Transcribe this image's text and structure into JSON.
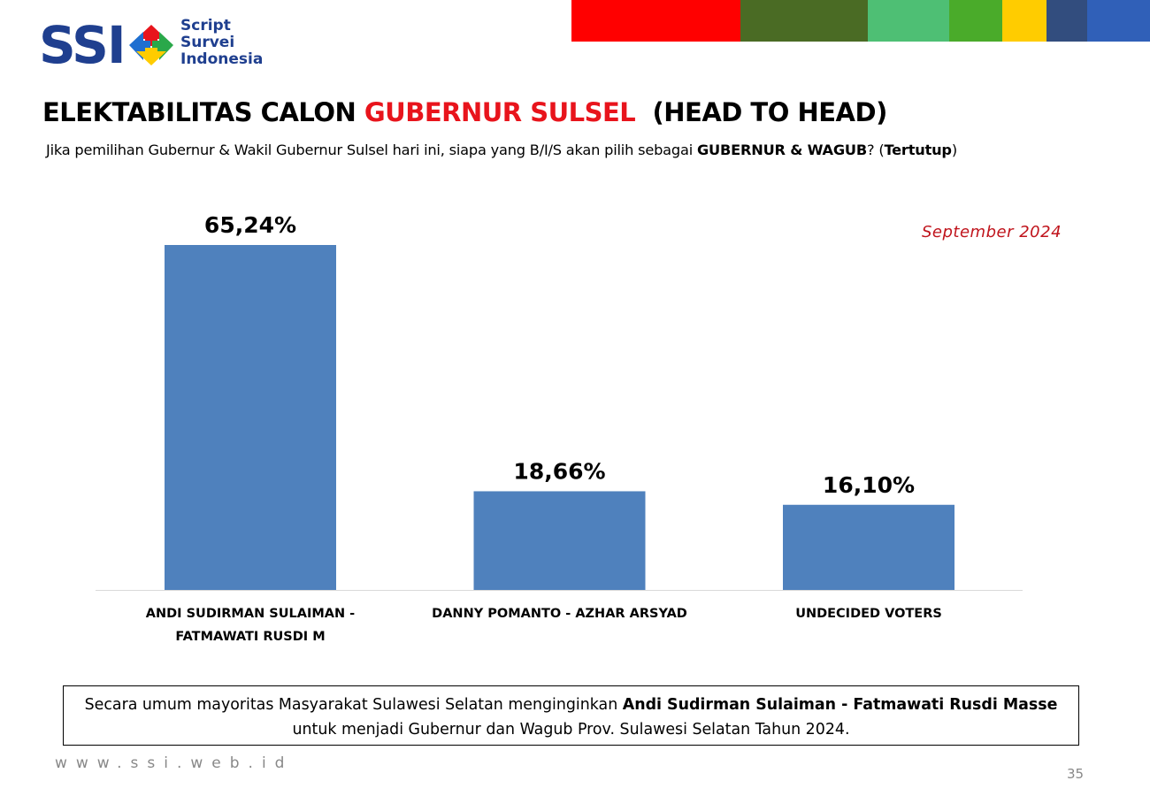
{
  "logo": {
    "brand": "SSI",
    "line1": "Script",
    "line2": "Survei",
    "line3": "Indonesia"
  },
  "strip_colors": [
    "#ff0000",
    "#4a6b24",
    "#4ebf74",
    "#4aab2a",
    "#ffcc00",
    "#324d7e",
    "#3060b8"
  ],
  "title": {
    "part1": "ELEKTABILITAS CALON ",
    "part2": "GUBERNUR SULSEL",
    "part3": "  (HEAD TO HEAD)",
    "accent_color": "#e8141c"
  },
  "subtitle": {
    "text1": "Jika pemilihan Gubernur & Wakil Gubernur Sulsel hari ini, siapa yang B/I/S akan pilih sebagai ",
    "bold1": "GUBERNUR & WAGUB",
    "text2": "? (",
    "bold2": "Tertutup",
    "text3": ")"
  },
  "date_label": "September 2024",
  "chart_data": {
    "type": "bar",
    "categories": [
      [
        "ANDI SUDIRMAN SULAIMAN -",
        "FATMAWATI RUSDI M"
      ],
      [
        "DANNY POMANTO - AZHAR ARSYAD"
      ],
      [
        "UNDECIDED VOTERS"
      ]
    ],
    "values": [
      65.24,
      18.66,
      16.1
    ],
    "value_labels": [
      "65,24%",
      "18,66%",
      "16,10%"
    ],
    "bar_color": "#4f81bd",
    "ylim": [
      0,
      70
    ],
    "grid": false,
    "title": "",
    "xlabel": "",
    "ylabel": ""
  },
  "summary": {
    "text1": "Secara umum mayoritas Masyarakat Sulawesi Selatan menginginkan ",
    "bold1": "Andi Sudirman Sulaiman - Fatmawati Rusdi Masse",
    "text2": " untuk menjadi Gubernur dan Wagub Prov. Sulawesi Selatan Tahun 2024."
  },
  "footer": {
    "url": "www.ssi.web.id",
    "page": "35"
  }
}
